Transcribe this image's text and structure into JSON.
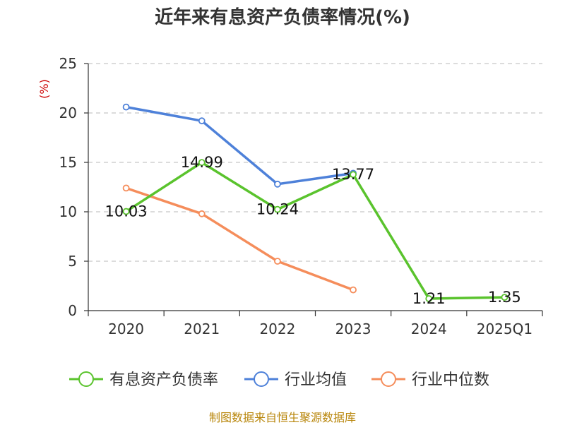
{
  "title": "近年来有息资产负债率情况(%)",
  "source": "制图数据来自恒生聚源数据库",
  "chart_data": {
    "type": "line",
    "title": "近年来有息资产负债率情况(%)",
    "ylabel": "(%)",
    "ylim": [
      0,
      25
    ],
    "yticks": [
      0,
      5,
      10,
      15,
      20,
      25
    ],
    "categories": [
      "2020",
      "2021",
      "2022",
      "2023",
      "2024",
      "2025Q1"
    ],
    "grid": true,
    "legend": "bottom",
    "series": [
      {
        "name": "有息资产负债率",
        "color": "#5ac32d",
        "values": [
          10.03,
          14.99,
          10.24,
          13.77,
          1.21,
          1.35
        ],
        "labels": [
          "10.03",
          "14.99",
          "10.24",
          "13.77",
          "1.21",
          "1.35"
        ]
      },
      {
        "name": "行业均值",
        "color": "#4e81d9",
        "values": [
          20.6,
          19.2,
          12.8,
          13.9,
          null,
          null
        ]
      },
      {
        "name": "行业中位数",
        "color": "#f58d5b",
        "values": [
          12.4,
          9.8,
          5.0,
          2.1,
          null,
          null
        ]
      }
    ]
  }
}
